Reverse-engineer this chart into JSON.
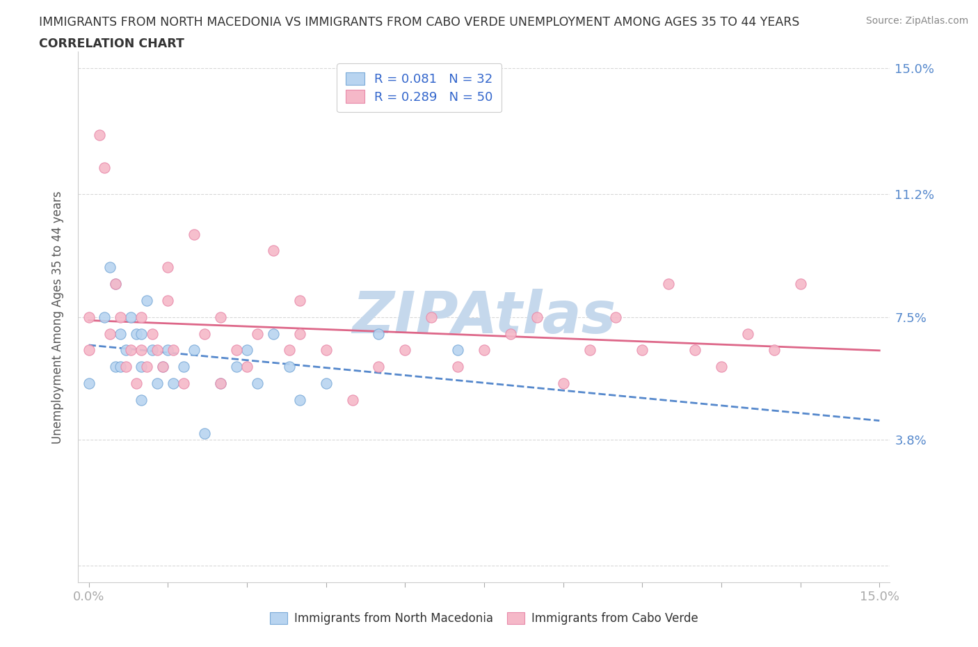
{
  "title_line1": "IMMIGRANTS FROM NORTH MACEDONIA VS IMMIGRANTS FROM CABO VERDE UNEMPLOYMENT AMONG AGES 35 TO 44 YEARS",
  "title_line2": "CORRELATION CHART",
  "source": "Source: ZipAtlas.com",
  "ylabel": "Unemployment Among Ages 35 to 44 years",
  "xlim": [
    0.0,
    0.15
  ],
  "ylim": [
    0.0,
    0.15
  ],
  "yticks": [
    0.0,
    0.038,
    0.075,
    0.112,
    0.15
  ],
  "ytick_labels": [
    "",
    "3.8%",
    "7.5%",
    "11.2%",
    "15.0%"
  ],
  "xtick_labels_shown": [
    "0.0%",
    "15.0%"
  ],
  "series1_label": "Immigrants from North Macedonia",
  "series2_label": "Immigrants from Cabo Verde",
  "series1_R": 0.081,
  "series1_N": 32,
  "series2_R": 0.289,
  "series2_N": 50,
  "series1_color": "#b8d4f0",
  "series2_color": "#f5b8c8",
  "series1_edge_color": "#7aaad8",
  "series2_edge_color": "#e88aaa",
  "series1_line_color": "#5588cc",
  "series2_line_color": "#dd6688",
  "watermark": "ZIPAtlas",
  "watermark_color": "#c5d8ec",
  "legend_text_color": "#3366cc",
  "axis_label_color": "#555555",
  "tick_color": "#5588cc",
  "grid_color": "#d8d8d8",
  "title_color": "#333333",
  "bg_color": "#ffffff",
  "series1_x": [
    0.0,
    0.003,
    0.004,
    0.005,
    0.005,
    0.006,
    0.006,
    0.007,
    0.008,
    0.009,
    0.01,
    0.01,
    0.01,
    0.011,
    0.012,
    0.013,
    0.014,
    0.015,
    0.016,
    0.018,
    0.02,
    0.022,
    0.025,
    0.028,
    0.03,
    0.032,
    0.035,
    0.038,
    0.04,
    0.045,
    0.055,
    0.07
  ],
  "series1_y": [
    0.055,
    0.075,
    0.09,
    0.06,
    0.085,
    0.07,
    0.06,
    0.065,
    0.075,
    0.07,
    0.05,
    0.06,
    0.07,
    0.08,
    0.065,
    0.055,
    0.06,
    0.065,
    0.055,
    0.06,
    0.065,
    0.04,
    0.055,
    0.06,
    0.065,
    0.055,
    0.07,
    0.06,
    0.05,
    0.055,
    0.07,
    0.065
  ],
  "series2_x": [
    0.0,
    0.0,
    0.002,
    0.003,
    0.004,
    0.005,
    0.006,
    0.007,
    0.008,
    0.009,
    0.01,
    0.01,
    0.011,
    0.012,
    0.013,
    0.014,
    0.015,
    0.015,
    0.016,
    0.018,
    0.02,
    0.022,
    0.025,
    0.025,
    0.028,
    0.03,
    0.032,
    0.035,
    0.038,
    0.04,
    0.04,
    0.045,
    0.05,
    0.055,
    0.06,
    0.065,
    0.07,
    0.075,
    0.08,
    0.085,
    0.09,
    0.095,
    0.1,
    0.105,
    0.11,
    0.115,
    0.12,
    0.125,
    0.13,
    0.135
  ],
  "series2_y": [
    0.065,
    0.075,
    0.13,
    0.12,
    0.07,
    0.085,
    0.075,
    0.06,
    0.065,
    0.055,
    0.065,
    0.075,
    0.06,
    0.07,
    0.065,
    0.06,
    0.08,
    0.09,
    0.065,
    0.055,
    0.1,
    0.07,
    0.055,
    0.075,
    0.065,
    0.06,
    0.07,
    0.095,
    0.065,
    0.07,
    0.08,
    0.065,
    0.05,
    0.06,
    0.065,
    0.075,
    0.06,
    0.065,
    0.07,
    0.075,
    0.055,
    0.065,
    0.075,
    0.065,
    0.085,
    0.065,
    0.06,
    0.07,
    0.065,
    0.085
  ]
}
